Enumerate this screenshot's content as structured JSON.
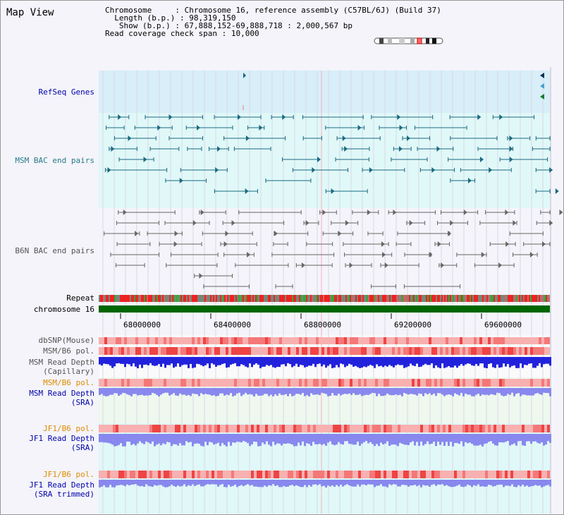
{
  "title": "Map View",
  "info": {
    "chromosome_label": "Chromosome",
    "chromosome_value": "Chromosome 16, reference assembly (C57BL/6J) (Build 37)",
    "length_label": "Length (b.p.)",
    "length_value": "98,319,150",
    "show_label": "Show (b.p.)",
    "show_value": "67,888,152-69,888,718 : 2,000,567 bp",
    "coverage_label": "Read coverage check span",
    "coverage_value": "10,000"
  },
  "tracks": {
    "refseq": "RefSeq Genes",
    "msm_bac": "MSM BAC end pairs",
    "b6n_bac": "B6N BAC end pairs",
    "repeat": "Repeat",
    "chromosome": "chromosome 16",
    "dbsnp": "dbSNP(Mouse)",
    "msm_pol": "MSM/B6 pol.",
    "msm_depth_cap_1": "MSM Read Depth",
    "msm_depth_cap_2": "(Capillary)",
    "msm_pol_sra": "MSM/B6 pol.",
    "msm_depth_sra_1": "MSM Read Depth",
    "msm_depth_sra_2": "(SRA)",
    "jf1_pol": "JF1/B6 pol.",
    "jf1_depth_1": "JF1 Read Depth",
    "jf1_depth_2": "(SRA)",
    "jf1_pol_trim": "JF1/B6 pol.",
    "jf1_depth_trim_1": "JF1 Read Depth",
    "jf1_depth_trim_2": "(SRA trimmed)"
  },
  "axis": {
    "ticks": [
      "68000000",
      "68400000",
      "68800000",
      "69200000",
      "69600000"
    ]
  },
  "colors": {
    "refseq_bg": "#d8eef8",
    "bac_bg": "#e0f8f8",
    "b6n_bg": "#f4f4fa",
    "gene_teal": "#1a6a80",
    "b6n_gray": "#666666",
    "chromosome_green": "#006600",
    "depth_blue": "#2222dd",
    "depth_light_blue": "#8888ee",
    "pol_red": "#ee4444",
    "pol_pink": "#f8b0b0"
  }
}
